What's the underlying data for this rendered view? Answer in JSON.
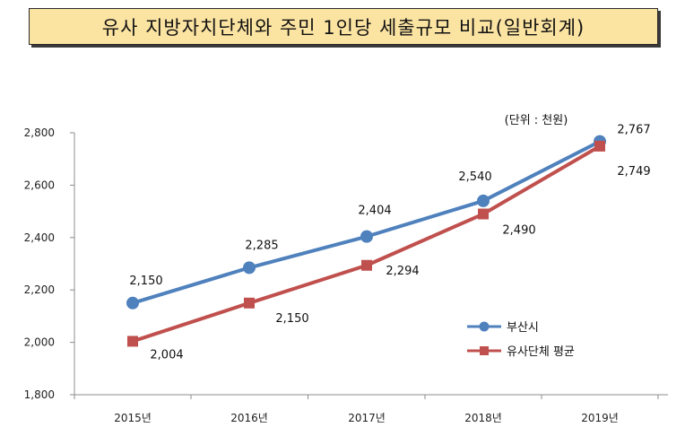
{
  "chart_data": {
    "type": "line",
    "title": "유사 지방자치단체와 주민 1인당 세출규모 비교(일반회계)",
    "unit_label": "(단위 : 천원)",
    "categories": [
      "2015년",
      "2016년",
      "2017년",
      "2018년",
      "2019년"
    ],
    "series": [
      {
        "name": "부산시",
        "values": [
          2150,
          2285,
          2404,
          2540,
          2767
        ],
        "labels": [
          "2,150",
          "2,285",
          "2,404",
          "2,540",
          "2,767"
        ],
        "color": "#4f81bd",
        "marker": "circle"
      },
      {
        "name": "유사단체 평균",
        "values": [
          2004,
          2150,
          2294,
          2490,
          2749
        ],
        "labels": [
          "2,004",
          "2,150",
          "2,294",
          "2,490",
          "2,749"
        ],
        "color": "#c0504d",
        "marker": "square"
      }
    ],
    "ylim": [
      1800,
      2800
    ],
    "yticks": [
      1800,
      2000,
      2200,
      2400,
      2600,
      2800
    ],
    "ytick_labels": [
      "1,800",
      "2,000",
      "2,200",
      "2,400",
      "2,600",
      "2,800"
    ],
    "grid": false,
    "legend": "right"
  }
}
